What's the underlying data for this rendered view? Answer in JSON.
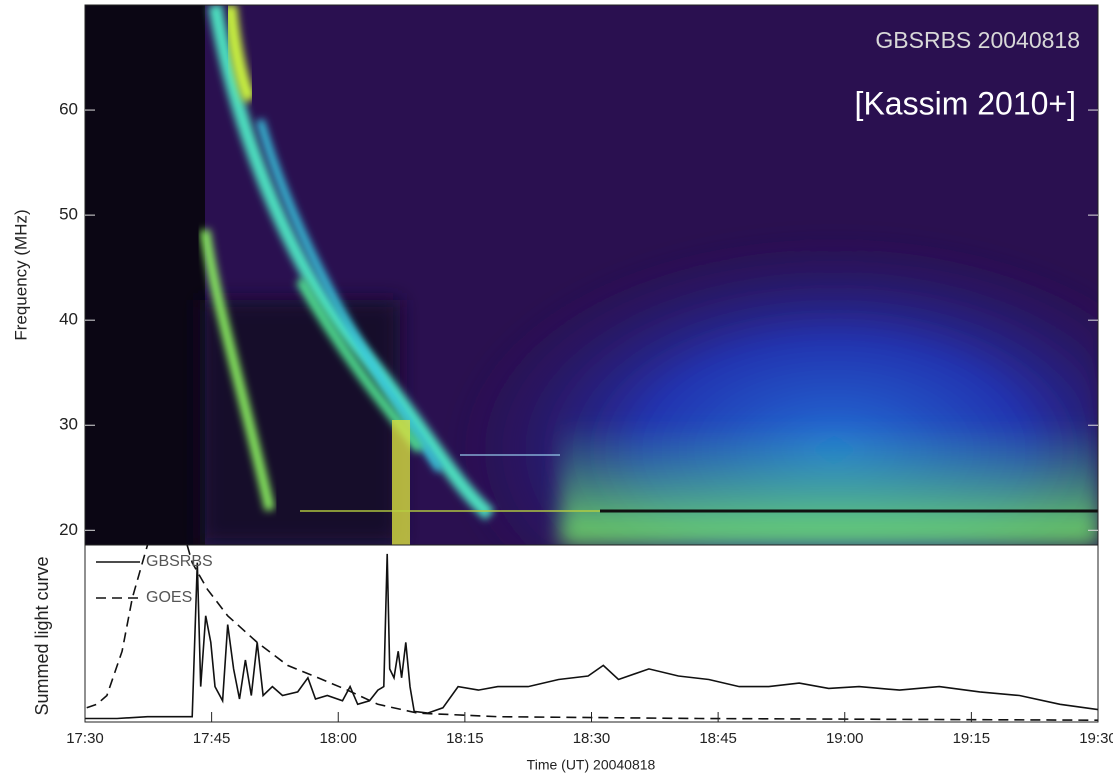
{
  "chart_data": [
    {
      "type": "spectrogram",
      "title": "GBSRBS 20040818",
      "annotation": "[Kassim 2010+]",
      "y_label": "Frequency (MHz)",
      "ylim": [
        18.6,
        70
      ],
      "yticks": [
        20,
        30,
        40,
        50,
        60
      ]
    },
    {
      "type": "line",
      "x_label": "Time (UT) 20040818",
      "y_label": "Summed light curve",
      "xlim": [
        1050,
        1170
      ],
      "xticks": [
        {
          "value": 1050,
          "label": "17:30"
        },
        {
          "value": 1065,
          "label": "17:45"
        },
        {
          "value": 1080,
          "label": "18:00"
        },
        {
          "value": 1095,
          "label": "18:15"
        },
        {
          "value": 1110,
          "label": "18:30"
        },
        {
          "value": 1125,
          "label": "18:45"
        },
        {
          "value": 1140,
          "label": "19:00"
        },
        {
          "value": 1155,
          "label": "19:15"
        },
        {
          "value": 1170,
          "label": "19:30"
        }
      ],
      "ylim": [
        0,
        1
      ],
      "series": [
        {
          "name": "GBSRBS",
          "color": "#111111",
          "dash": false,
          "x": [
            1050,
            1053.8,
            1057.4,
            1062.7,
            1063.3,
            1063.7,
            1064.3,
            1064.9,
            1065.4,
            1066.3,
            1066.9,
            1067.6,
            1068.3,
            1069,
            1069.7,
            1070.4,
            1071.1,
            1072.2,
            1073.4,
            1075.2,
            1076.4,
            1077.3,
            1078.7,
            1080.5,
            1081.4,
            1082.3,
            1083.7,
            1084.7,
            1085.4,
            1085.8,
            1086.1,
            1086.6,
            1087.1,
            1087.5,
            1088,
            1088.5,
            1089,
            1090.6,
            1092.4,
            1094.2,
            1096.6,
            1098.9,
            1102.5,
            1106.1,
            1109.6,
            1111.4,
            1113.2,
            1116.8,
            1120.3,
            1123.9,
            1127.5,
            1131,
            1134.6,
            1138.1,
            1141.7,
            1146.5,
            1151.2,
            1156,
            1160.7,
            1165.5,
            1170
          ],
          "values": [
            0.02,
            0.02,
            0.03,
            0.03,
            0.9,
            0.2,
            0.6,
            0.45,
            0.2,
            0.12,
            0.55,
            0.3,
            0.13,
            0.35,
            0.15,
            0.45,
            0.15,
            0.2,
            0.15,
            0.17,
            0.25,
            0.13,
            0.15,
            0.12,
            0.2,
            0.1,
            0.12,
            0.18,
            0.2,
            0.95,
            0.3,
            0.25,
            0.4,
            0.25,
            0.45,
            0.2,
            0.06,
            0.05,
            0.08,
            0.2,
            0.18,
            0.2,
            0.2,
            0.24,
            0.26,
            0.32,
            0.24,
            0.3,
            0.26,
            0.24,
            0.2,
            0.2,
            0.22,
            0.19,
            0.2,
            0.18,
            0.2,
            0.17,
            0.15,
            0.1,
            0.07
          ]
        },
        {
          "name": "GOES",
          "color": "#111111",
          "dash": true,
          "x": [
            1050.2,
            1051.4,
            1052.6,
            1054.4,
            1055.6,
            1056.8,
            1057.4,
            1059.8,
            1061.5,
            1062.7,
            1064.5,
            1066.9,
            1070.4,
            1074,
            1077.6,
            1081.1,
            1084.7,
            1089.4,
            1098.9,
            1122.7,
            1170
          ],
          "values": [
            0.08,
            0.1,
            0.15,
            0.4,
            0.7,
            0.9,
            1.0,
            1.1,
            1.1,
            0.9,
            0.75,
            0.6,
            0.45,
            0.32,
            0.25,
            0.18,
            0.1,
            0.05,
            0.03,
            0.02,
            0.01
          ]
        }
      ]
    }
  ]
}
